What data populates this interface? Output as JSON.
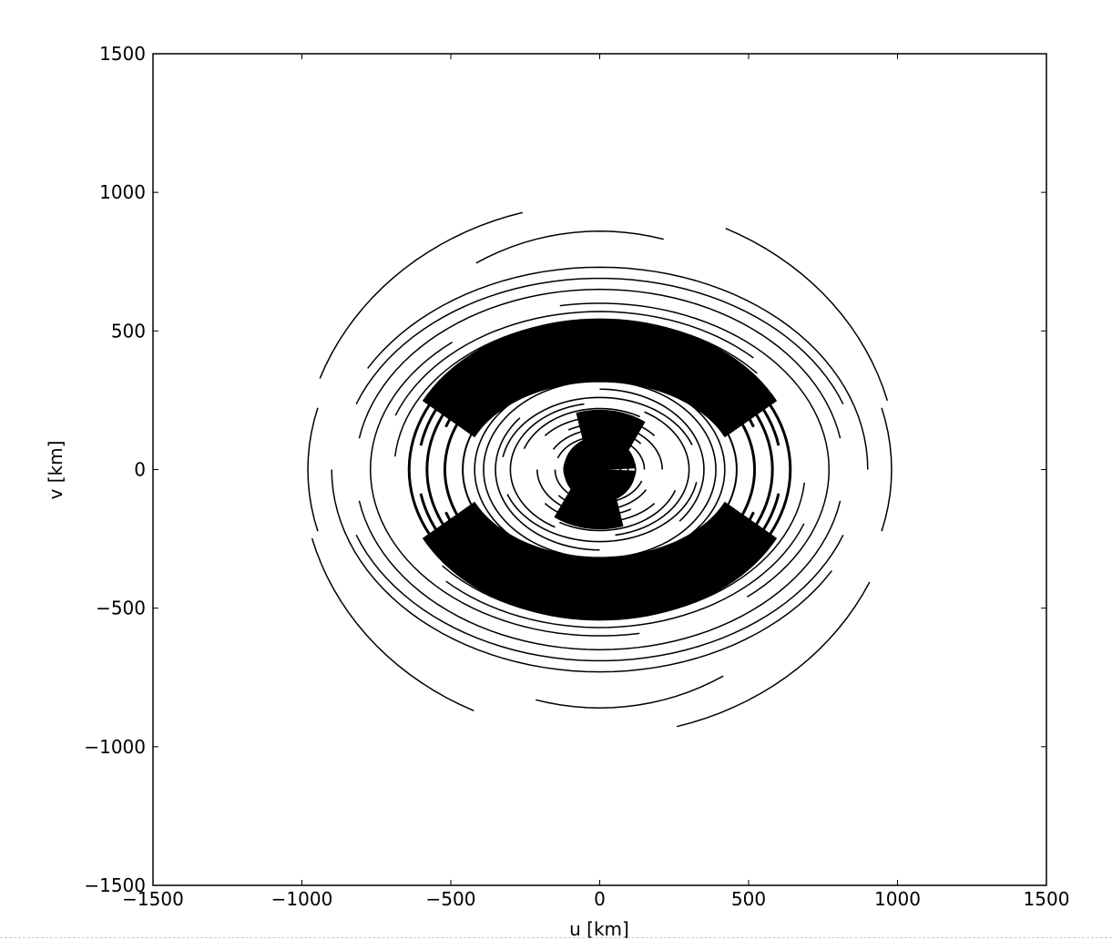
{
  "chart_data": {
    "type": "scatter",
    "title": "",
    "xlabel": "u [km]",
    "ylabel": "v [km]",
    "xlim": [
      -1500,
      1500
    ],
    "ylim": [
      -1500,
      1500
    ],
    "xticks": [
      -1500,
      -1000,
      -500,
      0,
      500,
      1000,
      1500
    ],
    "yticks": [
      -1500,
      -1000,
      -500,
      0,
      500,
      1000,
      1500
    ],
    "xtick_labels": [
      "−1500",
      "−1000",
      "−500",
      "0",
      "500",
      "1000",
      "1500"
    ],
    "ytick_labels": [
      "−1500",
      "−1000",
      "−500",
      "0",
      "500",
      "1000",
      "1500"
    ],
    "grid": false,
    "legend": "none",
    "line_color": "#000000",
    "uv_tracks": [
      {
        "center": [
          0,
          0
        ],
        "semi_axes": [
          1000,
          960
        ],
        "arcs": [
          [
            15,
            65
          ],
          [
            105,
            160
          ],
          [
            195,
            245
          ],
          [
            285,
            335
          ]
        ]
      },
      {
        "center": [
          0,
          0
        ],
        "semi_axes": [
          980,
          860
        ],
        "arcs": [
          [
            -15,
            15
          ],
          [
            165,
            195
          ]
        ]
      },
      {
        "center": [
          0,
          0
        ],
        "semi_axes": [
          830,
          860
        ],
        "arcs": [
          [
            75,
            120
          ],
          [
            255,
            300
          ]
        ]
      },
      {
        "center": [
          0,
          0
        ],
        "semi_axes": [
          900,
          730
        ],
        "arcs": [
          [
            0,
            150
          ],
          [
            180,
            330
          ]
        ]
      },
      {
        "center": [
          0,
          0
        ],
        "semi_axes": [
          870,
          690
        ],
        "arcs": [
          [
            20,
            160
          ],
          [
            200,
            340
          ]
        ]
      },
      {
        "center": [
          0,
          0
        ],
        "semi_axes": [
          820,
          650
        ],
        "arcs": [
          [
            10,
            170
          ],
          [
            190,
            350
          ]
        ]
      },
      {
        "center": [
          0,
          0
        ],
        "semi_axes": [
          770,
          600
        ],
        "arcs": [
          [
            30,
            100
          ],
          [
            130,
            210
          ],
          [
            210,
            280
          ],
          [
            310,
            30
          ]
        ]
      },
      {
        "center": [
          0,
          0
        ],
        "semi_axes": [
          730,
          570
        ],
        "arcs": [
          [
            45,
            160
          ],
          [
            225,
            340
          ]
        ]
      },
      {
        "center": [
          0,
          0
        ],
        "semi_axes": [
          690,
          540
        ],
        "arcs": [
          [
            40,
            175
          ],
          [
            220,
            355
          ]
        ]
      },
      {
        "center": [
          0,
          0
        ],
        "semi_axes": [
          640,
          520
        ],
        "arcs": [
          [
            0,
            360
          ]
        ],
        "width": 3
      },
      {
        "center": [
          0,
          0
        ],
        "semi_axes": [
          610,
          500
        ],
        "arcs": [
          [
            10,
            170
          ],
          [
            190,
            350
          ]
        ],
        "width": 3
      },
      {
        "center": [
          0,
          0
        ],
        "semi_axes": [
          580,
          470
        ],
        "arcs": [
          [
            0,
            360
          ]
        ],
        "width": 3
      },
      {
        "center": [
          0,
          0
        ],
        "semi_axes": [
          550,
          450
        ],
        "arcs": [
          [
            20,
            160
          ],
          [
            200,
            340
          ]
        ],
        "width": 3
      },
      {
        "center": [
          0,
          0
        ],
        "semi_axes": [
          520,
          420
        ],
        "arcs": [
          [
            0,
            360
          ]
        ],
        "width": 3
      },
      {
        "center": [
          0,
          0
        ],
        "semi_axes": [
          490,
          390
        ],
        "arcs": [
          [
            30,
            150
          ],
          [
            210,
            330
          ]
        ],
        "width": 2
      },
      {
        "center": [
          0,
          0
        ],
        "semi_axes": [
          460,
          365
        ],
        "arcs": [
          [
            0,
            360
          ]
        ],
        "width": 2
      },
      {
        "center": [
          0,
          0
        ],
        "semi_axes": [
          420,
          340
        ],
        "arcs": [
          [
            -60,
            100
          ],
          [
            120,
            280
          ]
        ],
        "width": 1.6
      },
      {
        "center": [
          0,
          0
        ],
        "semi_axes": [
          390,
          320
        ],
        "arcs": [
          [
            0,
            360
          ]
        ],
        "width": 1.6
      },
      {
        "center": [
          0,
          0
        ],
        "semi_axes": [
          350,
          290
        ],
        "arcs": [
          [
            -40,
            90
          ],
          [
            140,
            270
          ]
        ],
        "width": 1.6
      },
      {
        "center": [
          0,
          0
        ],
        "semi_axes": [
          330,
          260
        ],
        "arcs": [
          [
            20,
            170
          ],
          [
            200,
            350
          ]
        ],
        "width": 1.6
      },
      {
        "center": [
          0,
          0
        ],
        "semi_axes": [
          300,
          240
        ],
        "arcs": [
          [
            -80,
            60
          ],
          [
            100,
            240
          ]
        ],
        "width": 1.6
      },
      {
        "center": [
          0,
          0
        ],
        "semi_axes": [
          270,
          220
        ],
        "arcs": [
          [
            60,
            160
          ],
          [
            240,
            340
          ]
        ],
        "width": 1.6
      },
      {
        "center": [
          0,
          0
        ],
        "semi_axes": [
          240,
          190
        ],
        "arcs": [
          [
            40,
            140
          ],
          [
            220,
            320
          ]
        ],
        "width": 1.6
      },
      {
        "center": [
          0,
          0
        ],
        "semi_axes": [
          210,
          165
        ],
        "arcs": [
          [
            0,
            120
          ],
          [
            180,
            300
          ]
        ],
        "width": 1.6
      },
      {
        "center": [
          0,
          0
        ],
        "semi_axes": [
          180,
          145
        ],
        "arcs": [
          [
            40,
            150
          ],
          [
            220,
            330
          ]
        ],
        "width": 1.6
      },
      {
        "center": [
          0,
          0
        ],
        "semi_axes": [
          150,
          120
        ],
        "arcs": [
          [
            0,
            160
          ],
          [
            180,
            340
          ]
        ],
        "width": 1.6
      },
      {
        "center": [
          0,
          0
        ],
        "semi_axes": [
          120,
          95
        ],
        "arcs": [
          [
            0,
            360
          ]
        ],
        "width": 1.6
      },
      {
        "center": [
          0,
          0
        ],
        "semi_axes": [
          95,
          75
        ],
        "arcs": [
          [
            0,
            360
          ]
        ],
        "width": 1.6
      },
      {
        "center": [
          0,
          0
        ],
        "semi_axes": [
          70,
          55
        ],
        "arcs": [
          [
            0,
            360
          ]
        ],
        "width": 2
      }
    ],
    "dense_regions": [
      {
        "center": [
          0,
          0
        ],
        "semi_axes": [
          560,
          430
        ],
        "arcs": [
          [
            25,
            155
          ],
          [
            205,
            335
          ]
        ],
        "width": 70
      },
      {
        "center": [
          0,
          0
        ],
        "semi_axes": [
          190,
          150
        ],
        "arcs": [
          [
            50,
            110
          ],
          [
            230,
            290
          ]
        ],
        "width": 40
      },
      {
        "center": [
          0,
          0
        ],
        "semi_axes": [
          35,
          28
        ],
        "arcs": [
          [
            0,
            360
          ]
        ],
        "width": 56
      }
    ]
  }
}
